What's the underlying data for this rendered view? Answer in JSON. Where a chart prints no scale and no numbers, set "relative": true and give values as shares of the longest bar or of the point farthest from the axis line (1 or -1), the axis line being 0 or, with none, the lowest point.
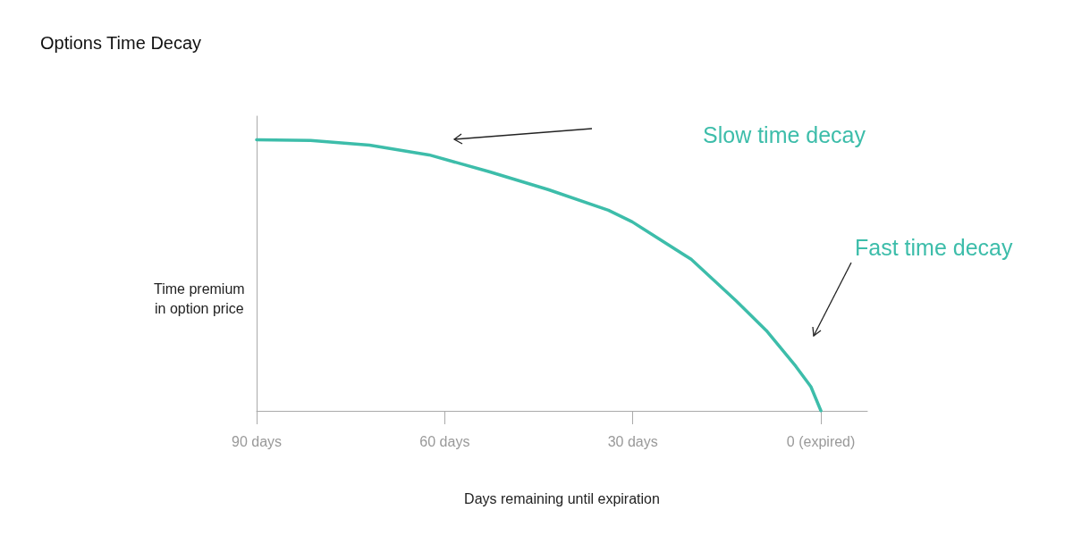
{
  "chart_data": {
    "type": "line",
    "title": "Options Time Decay",
    "xlabel": "Days remaining until expiration",
    "ylabel": "Time premium\nin option price",
    "relative": true,
    "x": [
      90,
      81.4,
      72.0,
      62.5,
      52.9,
      43.5,
      33.9,
      30.1,
      20.7,
      13.5,
      8.7,
      4.0,
      1.6,
      0
    ],
    "series": [
      {
        "color": "#3dbdaa",
        "values": [
          1,
          0.997,
          0.98,
          0.944,
          0.882,
          0.816,
          0.74,
          0.697,
          0.559,
          0.405,
          0.296,
          0.164,
          0.089,
          0
        ]
      }
    ],
    "xlim": [
      90,
      -7.4
    ],
    "xticks": [
      {
        "value": 90,
        "label": "90 days"
      },
      {
        "value": 60,
        "label": "60 days"
      },
      {
        "value": 30,
        "label": "30 days"
      },
      {
        "value": 0,
        "label": "0 (expired)"
      }
    ],
    "marker": "none",
    "line_style": "solid",
    "grid": false,
    "annotations": [
      "Slow time decay",
      "Fast time decay"
    ]
  }
}
